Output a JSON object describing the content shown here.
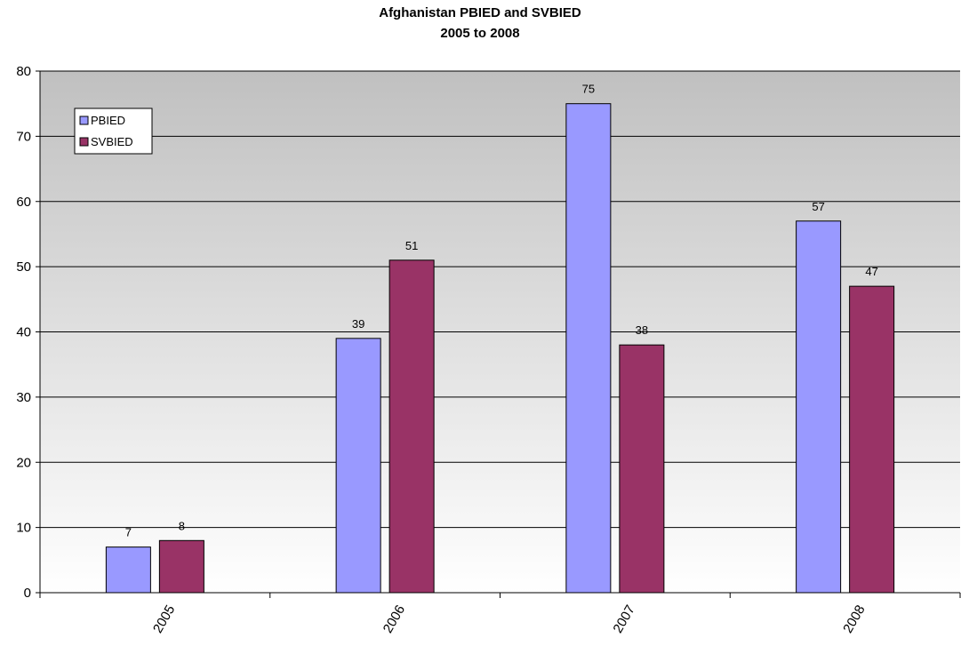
{
  "chart_data": {
    "type": "bar",
    "title_line1": "Afghanistan PBIED and SVBIED",
    "title_line2": "2005 to 2008",
    "categories": [
      "2005",
      "2006",
      "2007",
      "2008"
    ],
    "series": [
      {
        "name": "PBIED",
        "values": [
          7,
          39,
          75,
          57
        ],
        "color": "#9999FF"
      },
      {
        "name": "SVBIED",
        "values": [
          8,
          51,
          38,
          47
        ],
        "color": "#993366"
      }
    ],
    "ylim": [
      0,
      80
    ],
    "yticks": [
      0,
      10,
      20,
      30,
      40,
      50,
      60,
      70,
      80
    ],
    "grid": true,
    "legend_position": "top-left",
    "plot_background": "gradient gray to white"
  }
}
